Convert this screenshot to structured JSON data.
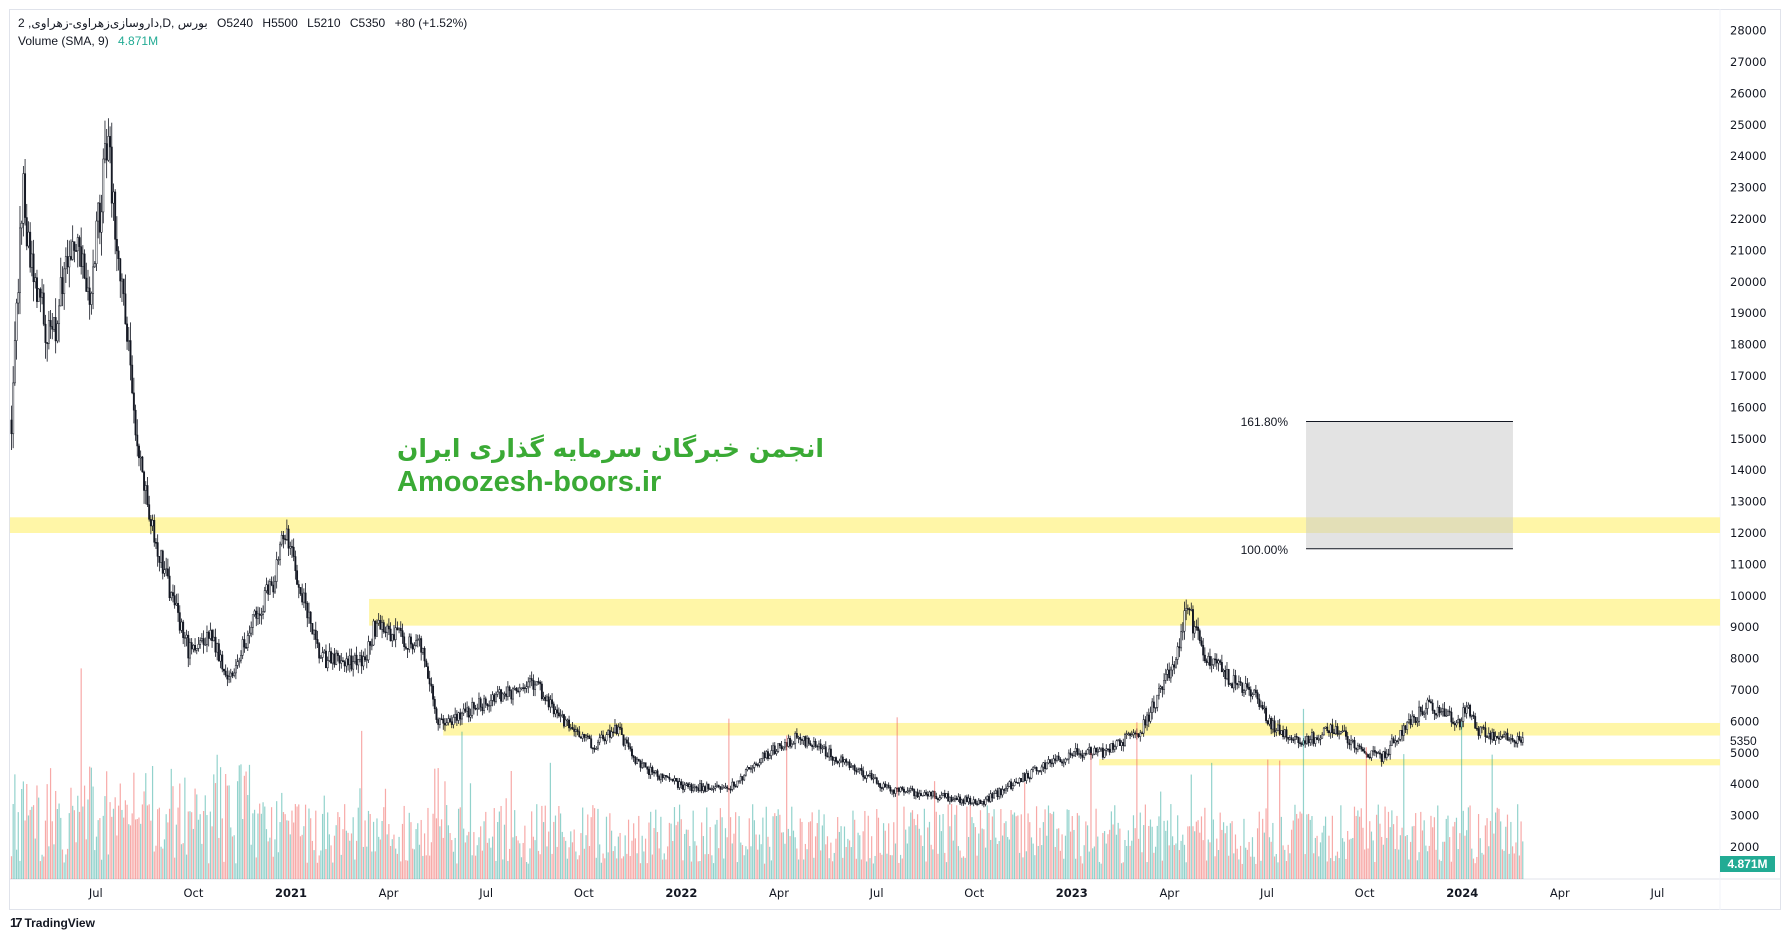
{
  "legend": {
    "symbol": "2 ,داروسازی‌زهراوی-زهراوی,D, بورس",
    "open": "O5240",
    "high": "H5500",
    "low": "L5210",
    "close": "C5350",
    "change": "+80 (+1.52%)",
    "volume_label": "Volume (SMA, 9)",
    "volume_value": "4.871M"
  },
  "watermark": {
    "line1": "انجمن خبرگان سرمایه گذاری ایران",
    "line2": "Amoozesh-boors.ir"
  },
  "fib": {
    "upper_label": "161.80%",
    "lower_label": "100.00%"
  },
  "price_scale": {
    "last_price": "5350",
    "volume_badge": "4.871M"
  },
  "branding": {
    "logo_text": "TradingView",
    "logo_mark": "17"
  },
  "colors": {
    "up_volume": "#26a69a",
    "down_volume": "#ef5350",
    "zone": "#fff59d",
    "accent": "#22ab94",
    "watermark": "#3aaa35"
  },
  "chart_data": {
    "type": "candlestick",
    "y_scale": "linear",
    "ylim": [
      2000,
      28000
    ],
    "y_ticks": [
      28000,
      27000,
      26000,
      25000,
      24000,
      23000,
      22000,
      21000,
      20000,
      19000,
      18000,
      17000,
      16000,
      15000,
      14000,
      13000,
      12000,
      11000,
      10000,
      9000,
      8000,
      7000,
      6000,
      5000,
      4000,
      3000,
      2000
    ],
    "x_ticks": [
      {
        "label": "Jul",
        "t": 2020.5
      },
      {
        "label": "Oct",
        "t": 2020.75
      },
      {
        "label": "2021",
        "t": 2021.0,
        "year": true
      },
      {
        "label": "Apr",
        "t": 2021.25
      },
      {
        "label": "Jul",
        "t": 2021.5
      },
      {
        "label": "Oct",
        "t": 2021.75
      },
      {
        "label": "2022",
        "t": 2022.0,
        "year": true
      },
      {
        "label": "Apr",
        "t": 2022.25
      },
      {
        "label": "Jul",
        "t": 2022.5
      },
      {
        "label": "Oct",
        "t": 2022.75
      },
      {
        "label": "2023",
        "t": 2023.0,
        "year": true
      },
      {
        "label": "Apr",
        "t": 2023.25
      },
      {
        "label": "Jul",
        "t": 2023.5
      },
      {
        "label": "Oct",
        "t": 2023.75
      },
      {
        "label": "2024",
        "t": 2024.0,
        "year": true
      },
      {
        "label": "Apr",
        "t": 2024.25
      },
      {
        "label": "Jul",
        "t": 2024.5
      }
    ],
    "price_path": [
      [
        2020.284,
        15600
      ],
      [
        2020.313,
        22800
      ],
      [
        2020.342,
        20000
      ],
      [
        2020.386,
        18000
      ],
      [
        2020.444,
        21500
      ],
      [
        2020.488,
        19500
      ],
      [
        2020.532,
        25000
      ],
      [
        2020.547,
        22000
      ],
      [
        2020.576,
        19000
      ],
      [
        2020.605,
        15000
      ],
      [
        2020.635,
        12500
      ],
      [
        2020.693,
        10000
      ],
      [
        2020.737,
        8300
      ],
      [
        2020.795,
        8800
      ],
      [
        2020.839,
        7300
      ],
      [
        2020.898,
        9000
      ],
      [
        2020.956,
        10500
      ],
      [
        2020.985,
        12000
      ],
      [
        2021.029,
        10000
      ],
      [
        2021.073,
        8000
      ],
      [
        2021.132,
        7900
      ],
      [
        2021.19,
        7900
      ],
      [
        2021.213,
        9000
      ],
      [
        2021.336,
        8400
      ],
      [
        2021.342,
        7800
      ],
      [
        2021.38,
        5900
      ],
      [
        2021.512,
        6700
      ],
      [
        2021.629,
        7200
      ],
      [
        2021.687,
        6100
      ],
      [
        2021.775,
        5200
      ],
      [
        2021.833,
        5800
      ],
      [
        2021.892,
        4600
      ],
      [
        2022.009,
        3900
      ],
      [
        2022.126,
        3900
      ],
      [
        2022.213,
        4900
      ],
      [
        2022.301,
        5500
      ],
      [
        2022.418,
        4700
      ],
      [
        2022.535,
        3800
      ],
      [
        2022.623,
        3700
      ],
      [
        2022.769,
        3400
      ],
      [
        2022.886,
        4300
      ],
      [
        2023.003,
        5000
      ],
      [
        2023.076,
        5000
      ],
      [
        2023.178,
        5700
      ],
      [
        2023.266,
        8000
      ],
      [
        2023.295,
        9600
      ],
      [
        2023.339,
        8200
      ],
      [
        2023.398,
        7400
      ],
      [
        2023.471,
        6900
      ],
      [
        2023.5,
        6000
      ],
      [
        2023.588,
        5300
      ],
      [
        2023.675,
        5800
      ],
      [
        2023.734,
        5200
      ],
      [
        2023.792,
        4800
      ],
      [
        2023.851,
        5800
      ],
      [
        2023.909,
        6500
      ],
      [
        2023.997,
        6000
      ],
      [
        2024.012,
        6600
      ],
      [
        2024.041,
        5700
      ],
      [
        2024.158,
        5350
      ]
    ],
    "zones": [
      {
        "name": "zone-12000",
        "low": 12000,
        "high": 12500,
        "from": 2020.28
      },
      {
        "name": "zone-9000",
        "low": 9050,
        "high": 9900,
        "from": 2021.2
      },
      {
        "name": "zone-5750",
        "low": 5550,
        "high": 5950,
        "from": 2021.39
      },
      {
        "name": "zone-4600",
        "low": 4600,
        "high": 4800,
        "from": 2023.07
      }
    ],
    "fib_box": {
      "from": 2023.6,
      "to": 2024.13,
      "level_100": 11500,
      "level_1618": 15550
    }
  }
}
